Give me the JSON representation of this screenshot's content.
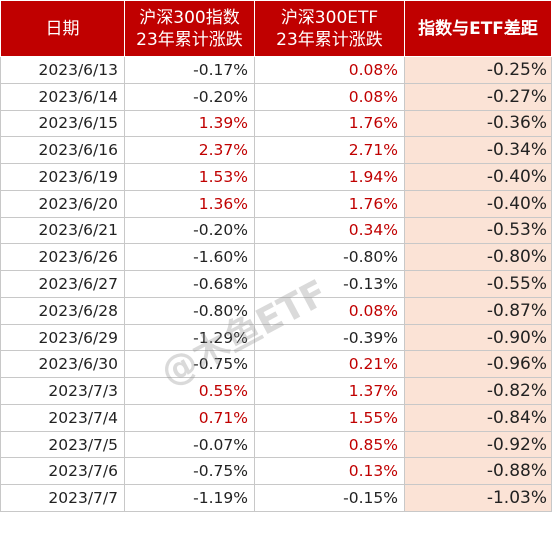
{
  "header": {
    "date": "日期",
    "index": [
      "沪深300指数",
      "23年累计涨跌"
    ],
    "etf": [
      "沪深300ETF",
      "23年累计涨跌"
    ],
    "diff": "指数与ETF差距"
  },
  "rows": [
    {
      "date": "2023/6/13",
      "index": "-0.17%",
      "etf": "0.08%",
      "diff": "-0.25%"
    },
    {
      "date": "2023/6/14",
      "index": "-0.20%",
      "etf": "0.08%",
      "diff": "-0.27%"
    },
    {
      "date": "2023/6/15",
      "index": "1.39%",
      "etf": "1.76%",
      "diff": "-0.36%"
    },
    {
      "date": "2023/6/16",
      "index": "2.37%",
      "etf": "2.71%",
      "diff": "-0.34%"
    },
    {
      "date": "2023/6/19",
      "index": "1.53%",
      "etf": "1.94%",
      "diff": "-0.40%"
    },
    {
      "date": "2023/6/20",
      "index": "1.36%",
      "etf": "1.76%",
      "diff": "-0.40%"
    },
    {
      "date": "2023/6/21",
      "index": "-0.20%",
      "etf": "0.34%",
      "diff": "-0.53%"
    },
    {
      "date": "2023/6/26",
      "index": "-1.60%",
      "etf": "-0.80%",
      "diff": "-0.80%"
    },
    {
      "date": "2023/6/27",
      "index": "-0.68%",
      "etf": "-0.13%",
      "diff": "-0.55%"
    },
    {
      "date": "2023/6/28",
      "index": "-0.80%",
      "etf": "0.08%",
      "diff": "-0.87%"
    },
    {
      "date": "2023/6/29",
      "index": "-1.29%",
      "etf": "-0.39%",
      "diff": "-0.90%"
    },
    {
      "date": "2023/6/30",
      "index": "-0.75%",
      "etf": "0.21%",
      "diff": "-0.96%"
    },
    {
      "date": "2023/7/3",
      "index": "0.55%",
      "etf": "1.37%",
      "diff": "-0.82%"
    },
    {
      "date": "2023/7/4",
      "index": "0.71%",
      "etf": "1.55%",
      "diff": "-0.84%"
    },
    {
      "date": "2023/7/5",
      "index": "-0.07%",
      "etf": "0.85%",
      "diff": "-0.92%"
    },
    {
      "date": "2023/7/6",
      "index": "-0.75%",
      "etf": "0.13%",
      "diff": "-0.88%"
    },
    {
      "date": "2023/7/7",
      "index": "-1.19%",
      "etf": "-0.15%",
      "diff": "-1.03%"
    }
  ],
  "watermark": "@木鱼ETF",
  "colors": {
    "header_bg": "#c00000",
    "positive": "#c00000",
    "diff_bg": "#fbe3d6"
  }
}
